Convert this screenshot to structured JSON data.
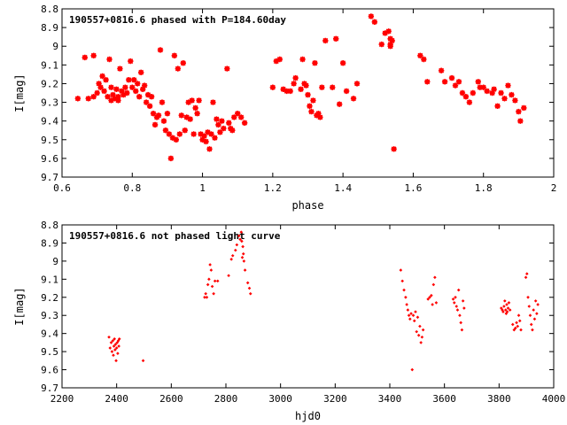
{
  "chart_data": [
    {
      "type": "scatter",
      "title": "190557+0816.6 phased with P=184.60day",
      "xlabel": "phase",
      "ylabel": "I[mag]",
      "xlim": [
        0.6,
        2
      ],
      "ylim": [
        9.7,
        8.8
      ],
      "y_inverted": true,
      "x_ticks": [
        0.6,
        0.8,
        1,
        1.2,
        1.4,
        1.6,
        1.8,
        2
      ],
      "x_tick_labels": [
        "0.6",
        "0.8",
        "1",
        "1.2",
        "1.4",
        "1.6",
        "1.8",
        "2"
      ],
      "y_ticks": [
        8.8,
        8.9,
        9,
        9.1,
        9.2,
        9.3,
        9.4,
        9.5,
        9.6,
        9.7
      ],
      "y_tick_labels": [
        "8.8",
        "8.9",
        "9",
        "9.1",
        "9.2",
        "9.3",
        "9.4",
        "9.5",
        "9.6",
        "9.7"
      ],
      "grid": false,
      "marker_color": "#ff0000",
      "marker_size": "large",
      "points": [
        [
          0.645,
          9.28
        ],
        [
          0.665,
          9.06
        ],
        [
          0.675,
          9.28
        ],
        [
          0.69,
          9.05
        ],
        [
          0.69,
          9.27
        ],
        [
          0.7,
          9.25
        ],
        [
          0.705,
          9.2
        ],
        [
          0.71,
          9.22
        ],
        [
          0.715,
          9.16
        ],
        [
          0.72,
          9.24
        ],
        [
          0.725,
          9.18
        ],
        [
          0.73,
          9.27
        ],
        [
          0.735,
          9.07
        ],
        [
          0.74,
          9.29
        ],
        [
          0.74,
          9.22
        ],
        [
          0.745,
          9.26
        ],
        [
          0.75,
          9.28
        ],
        [
          0.755,
          9.23
        ],
        [
          0.76,
          9.29
        ],
        [
          0.76,
          9.27
        ],
        [
          0.765,
          9.12
        ],
        [
          0.77,
          9.24
        ],
        [
          0.775,
          9.26
        ],
        [
          0.78,
          9.22
        ],
        [
          0.785,
          9.25
        ],
        [
          0.79,
          9.18
        ],
        [
          0.795,
          9.08
        ],
        [
          0.8,
          9.22
        ],
        [
          0.805,
          9.18
        ],
        [
          0.81,
          9.24
        ],
        [
          0.815,
          9.2
        ],
        [
          0.82,
          9.27
        ],
        [
          0.825,
          9.14
        ],
        [
          0.83,
          9.23
        ],
        [
          0.835,
          9.21
        ],
        [
          0.84,
          9.3
        ],
        [
          0.845,
          9.26
        ],
        [
          0.85,
          9.32
        ],
        [
          0.855,
          9.27
        ],
        [
          0.86,
          9.36
        ],
        [
          0.865,
          9.42
        ],
        [
          0.87,
          9.38
        ],
        [
          0.875,
          9.37
        ],
        [
          0.88,
          9.02
        ],
        [
          0.885,
          9.3
        ],
        [
          0.89,
          9.4
        ],
        [
          0.895,
          9.45
        ],
        [
          0.9,
          9.36
        ],
        [
          0.905,
          9.47
        ],
        [
          0.91,
          9.6
        ],
        [
          0.915,
          9.49
        ],
        [
          0.92,
          9.05
        ],
        [
          0.925,
          9.5
        ],
        [
          0.93,
          9.12
        ],
        [
          0.935,
          9.47
        ],
        [
          0.94,
          9.37
        ],
        [
          0.945,
          9.09
        ],
        [
          0.95,
          9.45
        ],
        [
          0.955,
          9.38
        ],
        [
          0.96,
          9.3
        ],
        [
          0.965,
          9.39
        ],
        [
          0.97,
          9.29
        ],
        [
          0.975,
          9.47
        ],
        [
          0.98,
          9.33
        ],
        [
          0.985,
          9.36
        ],
        [
          0.99,
          9.29
        ],
        [
          0.995,
          9.47
        ],
        [
          1.0,
          9.5
        ],
        [
          1.005,
          9.48
        ],
        [
          1.01,
          9.51
        ],
        [
          1.015,
          9.46
        ],
        [
          1.02,
          9.55
        ],
        [
          1.025,
          9.47
        ],
        [
          1.03,
          9.3
        ],
        [
          1.035,
          9.49
        ],
        [
          1.04,
          9.39
        ],
        [
          1.045,
          9.42
        ],
        [
          1.05,
          9.46
        ],
        [
          1.055,
          9.4
        ],
        [
          1.06,
          9.44
        ],
        [
          1.07,
          9.12
        ],
        [
          1.075,
          9.41
        ],
        [
          1.08,
          9.44
        ],
        [
          1.085,
          9.45
        ],
        [
          1.09,
          9.38
        ],
        [
          1.1,
          9.36
        ],
        [
          1.11,
          9.38
        ],
        [
          1.12,
          9.41
        ],
        [
          1.2,
          9.22
        ],
        [
          1.21,
          9.08
        ],
        [
          1.22,
          9.07
        ],
        [
          1.23,
          9.23
        ],
        [
          1.24,
          9.24
        ],
        [
          1.25,
          9.24
        ],
        [
          1.26,
          9.2
        ],
        [
          1.265,
          9.17
        ],
        [
          1.28,
          9.23
        ],
        [
          1.285,
          9.07
        ],
        [
          1.29,
          9.2
        ],
        [
          1.295,
          9.21
        ],
        [
          1.3,
          9.26
        ],
        [
          1.305,
          9.32
        ],
        [
          1.31,
          9.35
        ],
        [
          1.315,
          9.29
        ],
        [
          1.32,
          9.09
        ],
        [
          1.325,
          9.37
        ],
        [
          1.33,
          9.36
        ],
        [
          1.335,
          9.38
        ],
        [
          1.34,
          9.22
        ],
        [
          1.35,
          8.97
        ],
        [
          1.37,
          9.22
        ],
        [
          1.38,
          8.96
        ],
        [
          1.39,
          9.31
        ],
        [
          1.4,
          9.09
        ],
        [
          1.41,
          9.24
        ],
        [
          1.43,
          9.28
        ],
        [
          1.44,
          9.2
        ],
        [
          1.48,
          8.84
        ],
        [
          1.49,
          8.87
        ],
        [
          1.51,
          8.99
        ],
        [
          1.52,
          8.93
        ],
        [
          1.53,
          8.92
        ],
        [
          1.535,
          8.96
        ],
        [
          1.535,
          8.99
        ],
        [
          1.535,
          9.0
        ],
        [
          1.54,
          8.97
        ],
        [
          1.545,
          9.55
        ],
        [
          1.62,
          9.05
        ],
        [
          1.63,
          9.07
        ],
        [
          1.64,
          9.19
        ],
        [
          1.68,
          9.13
        ],
        [
          1.69,
          9.19
        ],
        [
          1.71,
          9.17
        ],
        [
          1.72,
          9.21
        ],
        [
          1.73,
          9.19
        ],
        [
          1.74,
          9.25
        ],
        [
          1.75,
          9.27
        ],
        [
          1.76,
          9.3
        ],
        [
          1.77,
          9.25
        ],
        [
          1.785,
          9.19
        ],
        [
          1.79,
          9.22
        ],
        [
          1.8,
          9.22
        ],
        [
          1.81,
          9.24
        ],
        [
          1.825,
          9.25
        ],
        [
          1.83,
          9.23
        ],
        [
          1.84,
          9.32
        ],
        [
          1.85,
          9.25
        ],
        [
          1.86,
          9.28
        ],
        [
          1.87,
          9.21
        ],
        [
          1.88,
          9.26
        ],
        [
          1.89,
          9.29
        ],
        [
          1.9,
          9.35
        ],
        [
          1.905,
          9.4
        ],
        [
          1.915,
          9.33
        ]
      ]
    },
    {
      "type": "scatter",
      "title": "190557+0816.6 not phased light curve",
      "xlabel": "hjd0",
      "ylabel": "I[mag]",
      "xlim": [
        2200,
        4000
      ],
      "ylim": [
        9.7,
        8.8
      ],
      "y_inverted": true,
      "x_ticks": [
        2200,
        2400,
        2600,
        2800,
        3000,
        3200,
        3400,
        3600,
        3800,
        4000
      ],
      "x_tick_labels": [
        "2200",
        "2400",
        "2600",
        "2800",
        "3000",
        "3200",
        "3400",
        "3600",
        "3800",
        "4000"
      ],
      "y_ticks": [
        8.8,
        8.9,
        9,
        9.1,
        9.2,
        9.3,
        9.4,
        9.5,
        9.6,
        9.7
      ],
      "y_tick_labels": [
        "8.8",
        "8.9",
        "9",
        "9.1",
        "9.2",
        "9.3",
        "9.4",
        "9.5",
        "9.6",
        "9.7"
      ],
      "grid": false,
      "marker_color": "#ff0000",
      "marker_size": "small",
      "points": [
        [
          2372,
          9.42
        ],
        [
          2376,
          9.48
        ],
        [
          2380,
          9.45
        ],
        [
          2383,
          9.5
        ],
        [
          2386,
          9.44
        ],
        [
          2388,
          9.52
        ],
        [
          2390,
          9.47
        ],
        [
          2392,
          9.43
        ],
        [
          2394,
          9.49
        ],
        [
          2396,
          9.46
        ],
        [
          2398,
          9.55
        ],
        [
          2400,
          9.48
        ],
        [
          2402,
          9.45
        ],
        [
          2404,
          9.51
        ],
        [
          2406,
          9.44
        ],
        [
          2408,
          9.47
        ],
        [
          2410,
          9.43
        ],
        [
          2497,
          9.55
        ],
        [
          2722,
          9.2
        ],
        [
          2726,
          9.18
        ],
        [
          2730,
          9.2
        ],
        [
          2734,
          9.13
        ],
        [
          2738,
          9.1
        ],
        [
          2742,
          9.02
        ],
        [
          2746,
          9.05
        ],
        [
          2750,
          9.14
        ],
        [
          2755,
          9.18
        ],
        [
          2760,
          9.11
        ],
        [
          2770,
          9.11
        ],
        [
          2810,
          9.08
        ],
        [
          2820,
          8.99
        ],
        [
          2825,
          8.97
        ],
        [
          2835,
          8.94
        ],
        [
          2840,
          8.91
        ],
        [
          2848,
          8.86
        ],
        [
          2852,
          8.88
        ],
        [
          2856,
          8.84
        ],
        [
          2858,
          8.89
        ],
        [
          2860,
          8.98
        ],
        [
          2862,
          8.92
        ],
        [
          2864,
          8.96
        ],
        [
          2866,
          9.0
        ],
        [
          2870,
          9.05
        ],
        [
          2880,
          9.12
        ],
        [
          2886,
          9.15
        ],
        [
          2890,
          9.18
        ],
        [
          3440,
          9.05
        ],
        [
          3446,
          9.11
        ],
        [
          3452,
          9.16
        ],
        [
          3458,
          9.2
        ],
        [
          3462,
          9.24
        ],
        [
          3466,
          9.27
        ],
        [
          3470,
          9.3
        ],
        [
          3474,
          9.32
        ],
        [
          3478,
          9.29
        ],
        [
          3482,
          9.6
        ],
        [
          3486,
          9.3
        ],
        [
          3490,
          9.33
        ],
        [
          3494,
          9.28
        ],
        [
          3498,
          9.39
        ],
        [
          3502,
          9.31
        ],
        [
          3506,
          9.41
        ],
        [
          3510,
          9.36
        ],
        [
          3514,
          9.45
        ],
        [
          3518,
          9.42
        ],
        [
          3522,
          9.38
        ],
        [
          3540,
          9.21
        ],
        [
          3546,
          9.2
        ],
        [
          3552,
          9.19
        ],
        [
          3556,
          9.24
        ],
        [
          3560,
          9.13
        ],
        [
          3565,
          9.09
        ],
        [
          3570,
          9.23
        ],
        [
          3632,
          9.21
        ],
        [
          3636,
          9.23
        ],
        [
          3640,
          9.2
        ],
        [
          3644,
          9.25
        ],
        [
          3648,
          9.27
        ],
        [
          3652,
          9.16
        ],
        [
          3656,
          9.3
        ],
        [
          3660,
          9.34
        ],
        [
          3664,
          9.38
        ],
        [
          3668,
          9.22
        ],
        [
          3672,
          9.26
        ],
        [
          3808,
          9.26
        ],
        [
          3812,
          9.27
        ],
        [
          3815,
          9.28
        ],
        [
          3818,
          9.25
        ],
        [
          3821,
          9.22
        ],
        [
          3824,
          9.27
        ],
        [
          3826,
          9.29
        ],
        [
          3828,
          9.24
        ],
        [
          3830,
          9.28
        ],
        [
          3833,
          9.26
        ],
        [
          3836,
          9.23
        ],
        [
          3840,
          9.27
        ],
        [
          3850,
          9.35
        ],
        [
          3855,
          9.38
        ],
        [
          3860,
          9.37
        ],
        [
          3864,
          9.34
        ],
        [
          3868,
          9.36
        ],
        [
          3872,
          9.3
        ],
        [
          3876,
          9.33
        ],
        [
          3880,
          9.38
        ],
        [
          3898,
          9.09
        ],
        [
          3902,
          9.07
        ],
        [
          3906,
          9.2
        ],
        [
          3910,
          9.25
        ],
        [
          3914,
          9.3
        ],
        [
          3918,
          9.35
        ],
        [
          3922,
          9.38
        ],
        [
          3926,
          9.27
        ],
        [
          3930,
          9.32
        ],
        [
          3934,
          9.22
        ],
        [
          3938,
          9.29
        ],
        [
          3942,
          9.24
        ]
      ]
    }
  ]
}
